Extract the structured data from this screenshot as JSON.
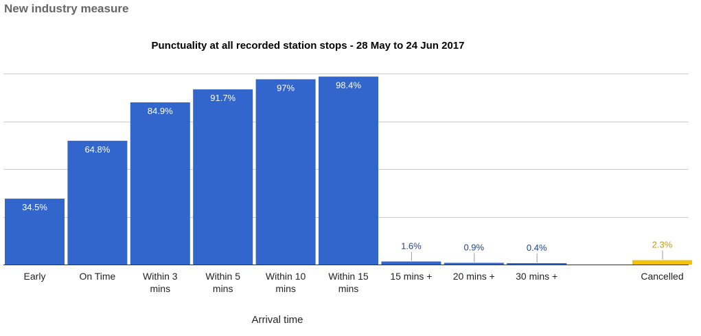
{
  "page": {
    "heading": "New industry measure"
  },
  "chart_data": {
    "type": "bar",
    "title": "Punctuality at all recorded station stops - 28 May to 24 Jun 2017",
    "xlabel": "Arrival time",
    "ylabel": "",
    "ylim": [
      0,
      100
    ],
    "grid": true,
    "legend": "none",
    "categories": [
      [
        "Early"
      ],
      [
        "On Time"
      ],
      [
        "Within 3",
        "mins"
      ],
      [
        "Within 5",
        "mins"
      ],
      [
        "Within 10",
        "mins"
      ],
      [
        "Within 15",
        "mins"
      ],
      [
        "15 mins +"
      ],
      [
        "20 mins +"
      ],
      [
        "30 mins +"
      ],
      [
        ""
      ],
      [
        "Cancelled"
      ]
    ],
    "values": [
      34.5,
      64.8,
      84.9,
      91.7,
      97,
      98.4,
      1.6,
      0.9,
      0.4,
      null,
      2.3
    ],
    "data_labels": [
      "34.5%",
      "64.8%",
      "84.9%",
      "91.7%",
      "97%",
      "98.4%",
      "1.6%",
      "0.9%",
      "0.4%",
      "",
      "2.3%"
    ],
    "colors": {
      "main": "#3366cc",
      "cancelled": "#f4c20d",
      "outside_label": "#224488",
      "cancelled_label": "#c69a00",
      "inside_label": "#ffffff",
      "grid": "#cccccc",
      "axis": "#333333"
    }
  }
}
